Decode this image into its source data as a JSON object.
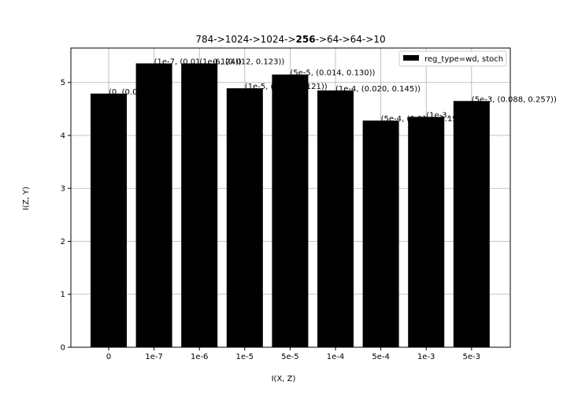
{
  "chart_data": {
    "type": "bar",
    "title": {
      "parts": [
        {
          "text": "784->1024->1024->",
          "bold": false
        },
        {
          "text": "256",
          "bold": true
        },
        {
          "text": "->64->64->10",
          "bold": false
        }
      ]
    },
    "xlabel": "I(X, Z)",
    "ylabel": "I(Z, Y)",
    "ylim": [
      0,
      5.65
    ],
    "yticks": [
      0,
      1,
      2,
      3,
      4,
      5
    ],
    "grid": true,
    "legend": {
      "position": "top-right",
      "entries": [
        "reg_type=wd, stoch"
      ]
    },
    "categories": [
      "0",
      "1e-7",
      "1e-6",
      "1e-5",
      "5e-5",
      "1e-4",
      "5e-4",
      "1e-3",
      "5e-3"
    ],
    "series": [
      {
        "name": "reg_type=wd, stoch",
        "color": "#000000",
        "values": [
          4.79,
          5.36,
          5.36,
          4.89,
          5.15,
          4.85,
          4.28,
          4.35,
          4.65
        ]
      }
    ],
    "annotations": [
      "(0, (0.0..., ...))",
      "(1e-7, (0.01..., 0.124))",
      "(1e-6, (0.012, 0.123))",
      "(1e-5, (0.0..., 0.121))",
      "(5e-5, (0.014, 0.130))",
      "(1e-4, (0.020, 0.145))",
      "(5e-4, (0.01..., 0.15...",
      "(1e-3, ...0.185))",
      "(5e-3, (0.088, 0.257))"
    ]
  }
}
